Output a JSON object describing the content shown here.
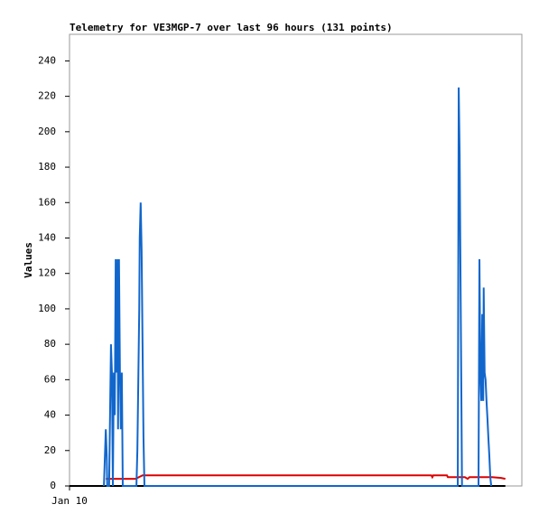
{
  "chart_data": {
    "type": "line",
    "title": "Telemetry for VE3MGP-7 over last 96 hours (131 points)",
    "y_label": "Values",
    "xlim": [
      0,
      96
    ],
    "xticks": [
      {
        "value": 0,
        "label": "Jan 10"
      }
    ],
    "ylim": [
      0,
      255
    ],
    "yticks": [
      0,
      20,
      40,
      60,
      80,
      100,
      120,
      140,
      160,
      180,
      200,
      220,
      240
    ],
    "series": [
      {
        "color": "#000000",
        "x": [
          0,
          92.5
        ],
        "values": [
          0,
          0
        ]
      },
      {
        "color": "#dd0000",
        "x": [
          7.7,
          14.0,
          15.5,
          76.8,
          77.0,
          77.2,
          80.1,
          80.3,
          83.9,
          84.5,
          84.9,
          89.7,
          91.6,
          92.5
        ],
        "values": [
          4,
          4,
          6,
          6,
          5,
          6,
          6,
          5,
          5,
          4,
          5,
          5,
          4.5,
          4
        ]
      },
      {
        "color": "#1166cc",
        "x": [
          7.3,
          7.7,
          7.9,
          8.0,
          8.4,
          8.6,
          8.8,
          9.0,
          9.2,
          9.4,
          9.6,
          9.8,
          10.0,
          10.2,
          10.3,
          10.5,
          10.7,
          10.9,
          11.1,
          11.3,
          14.2,
          14.4,
          14.6,
          14.8,
          14.9,
          15.1,
          15.3,
          15.5,
          15.7,
          15.9,
          82.4,
          82.6,
          82.8,
          83.0,
          83.2,
          83.3,
          86.8,
          87.0,
          87.2,
          87.4,
          87.6,
          87.8,
          87.9,
          88.1,
          88.3,
          88.5,
          88.7,
          88.9,
          89.1,
          89.3,
          89.5
        ],
        "values": [
          0,
          32,
          17,
          0,
          0,
          40,
          80,
          64,
          0,
          64,
          40,
          128,
          64,
          128,
          32,
          128,
          64,
          32,
          64,
          0,
          0,
          20,
          60,
          100,
          140,
          160,
          133,
          80,
          27,
          0,
          0,
          225,
          187,
          112,
          38,
          0,
          0,
          128,
          64,
          48,
          97,
          48,
          112,
          64,
          60,
          48,
          38,
          27,
          17,
          5,
          0
        ]
      }
    ]
  }
}
